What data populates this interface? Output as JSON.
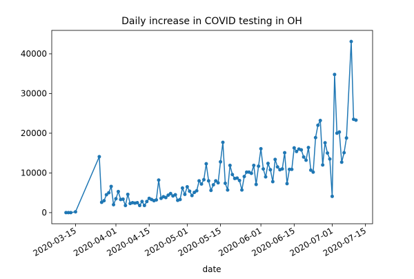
{
  "chart_data": {
    "type": "line",
    "title": "Daily increase in COVID testing in OH",
    "x_label": "date",
    "x": [
      "2020-03-11",
      "2020-03-12",
      "2020-03-13",
      "2020-03-15",
      "2020-03-25",
      "2020-03-26",
      "2020-03-27",
      "2020-03-28",
      "2020-03-29",
      "2020-03-30",
      "2020-03-31",
      "2020-04-01",
      "2020-04-02",
      "2020-04-03",
      "2020-04-04",
      "2020-04-05",
      "2020-04-06",
      "2020-04-07",
      "2020-04-08",
      "2020-04-09",
      "2020-04-10",
      "2020-04-11",
      "2020-04-12",
      "2020-04-13",
      "2020-04-14",
      "2020-04-15",
      "2020-04-16",
      "2020-04-17",
      "2020-04-18",
      "2020-04-19",
      "2020-04-20",
      "2020-04-21",
      "2020-04-22",
      "2020-04-23",
      "2020-04-24",
      "2020-04-25",
      "2020-04-26",
      "2020-04-27",
      "2020-04-28",
      "2020-04-29",
      "2020-04-30",
      "2020-05-01",
      "2020-05-02",
      "2020-05-03",
      "2020-05-04",
      "2020-05-05",
      "2020-05-06",
      "2020-05-07",
      "2020-05-08",
      "2020-05-09",
      "2020-05-10",
      "2020-05-11",
      "2020-05-12",
      "2020-05-13",
      "2020-05-14",
      "2020-05-15",
      "2020-05-16",
      "2020-05-17",
      "2020-05-18",
      "2020-05-19",
      "2020-05-20",
      "2020-05-21",
      "2020-05-22",
      "2020-05-23",
      "2020-05-24",
      "2020-05-25",
      "2020-05-26",
      "2020-05-27",
      "2020-05-28",
      "2020-05-29",
      "2020-05-30",
      "2020-05-31",
      "2020-06-01",
      "2020-06-02",
      "2020-06-03",
      "2020-06-04",
      "2020-06-05",
      "2020-06-06",
      "2020-06-07",
      "2020-06-08",
      "2020-06-09",
      "2020-06-10",
      "2020-06-11",
      "2020-06-12",
      "2020-06-13",
      "2020-06-14",
      "2020-06-15",
      "2020-06-16",
      "2020-06-17",
      "2020-06-18",
      "2020-06-19",
      "2020-06-20",
      "2020-06-21",
      "2020-06-22",
      "2020-06-23",
      "2020-06-24",
      "2020-06-25",
      "2020-06-26",
      "2020-06-27",
      "2020-06-28",
      "2020-06-29",
      "2020-06-30",
      "2020-07-01",
      "2020-07-02",
      "2020-07-03",
      "2020-07-04",
      "2020-07-05",
      "2020-07-06",
      "2020-07-07",
      "2020-07-09",
      "2020-07-10",
      "2020-07-11"
    ],
    "series": [
      {
        "color": "#1f77b4",
        "values": [
          0,
          0,
          0,
          200,
          14100,
          2600,
          3000,
          4500,
          5000,
          6600,
          2000,
          3500,
          5300,
          3300,
          3400,
          1800,
          4600,
          2300,
          2500,
          2400,
          2500,
          1800,
          2800,
          1800,
          2800,
          3600,
          3300,
          3000,
          3200,
          8200,
          3600,
          4000,
          3800,
          4400,
          4800,
          4200,
          4500,
          3100,
          3300,
          6200,
          4600,
          6500,
          5400,
          4300,
          5100,
          5500,
          8000,
          7200,
          8300,
          12300,
          8000,
          5600,
          7000,
          8000,
          7500,
          12800,
          17700,
          7400,
          5700,
          11900,
          9600,
          8600,
          8700,
          8100,
          5700,
          9100,
          10200,
          10200,
          9900,
          11900,
          7100,
          11700,
          16100,
          11000,
          9000,
          12400,
          10800,
          7800,
          13400,
          11500,
          10800,
          11000,
          15100,
          7300,
          10900,
          10900,
          16300,
          15400,
          16000,
          15800,
          14000,
          13200,
          16400,
          10700,
          10200,
          18900,
          22000,
          23200,
          12000,
          17600,
          15000,
          13500,
          4100,
          34800,
          20000,
          20300,
          12700,
          15100,
          18800,
          43100,
          23500,
          23300
        ]
      }
    ],
    "xlim": [
      "2020-03-05",
      "2020-07-18"
    ],
    "xticks": [
      "2020-03-15",
      "2020-04-01",
      "2020-04-15",
      "2020-05-01",
      "2020-05-15",
      "2020-06-01",
      "2020-06-15",
      "2020-07-01",
      "2020-07-15"
    ],
    "ylim": [
      -2800,
      45900
    ],
    "yticks": [
      0,
      10000,
      20000,
      30000,
      40000
    ],
    "grid": false
  }
}
